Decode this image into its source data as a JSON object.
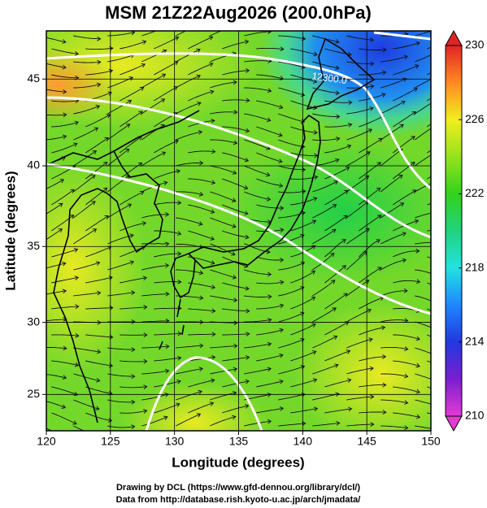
{
  "map": {
    "title": "MSM 21Z22Aug2026 (200.0hPa)",
    "xlabel": "Longitude (degrees)",
    "ylabel": "Latitude  (degrees)",
    "projection": "mercator",
    "xlim": [
      120,
      150
    ],
    "ylim": [
      22.4,
      47.6
    ],
    "xticks": [
      120,
      125,
      130,
      135,
      140,
      145,
      150
    ],
    "yticks": [
      25,
      30,
      35,
      40,
      45
    ],
    "grid": true,
    "contour_labels": [
      "12300.0"
    ],
    "colorbar": {
      "lim": [
        210,
        230
      ],
      "ticks": [
        210,
        214,
        218,
        222,
        226,
        230
      ],
      "colors": [
        "#e23cd2",
        "#7a1ed0",
        "#2238de",
        "#1f86ff",
        "#22e2e0",
        "#22d27e",
        "#33d21c",
        "#96e21e",
        "#f2ee1e",
        "#ff8a22",
        "#e02424"
      ]
    }
  },
  "credits": [
    "Drawing by DCL (https://www.gfd-dennou.org/library/dcl/)",
    "Data from http://database.rish.kyoto-u.ac.jp/arch/jmadata/"
  ]
}
